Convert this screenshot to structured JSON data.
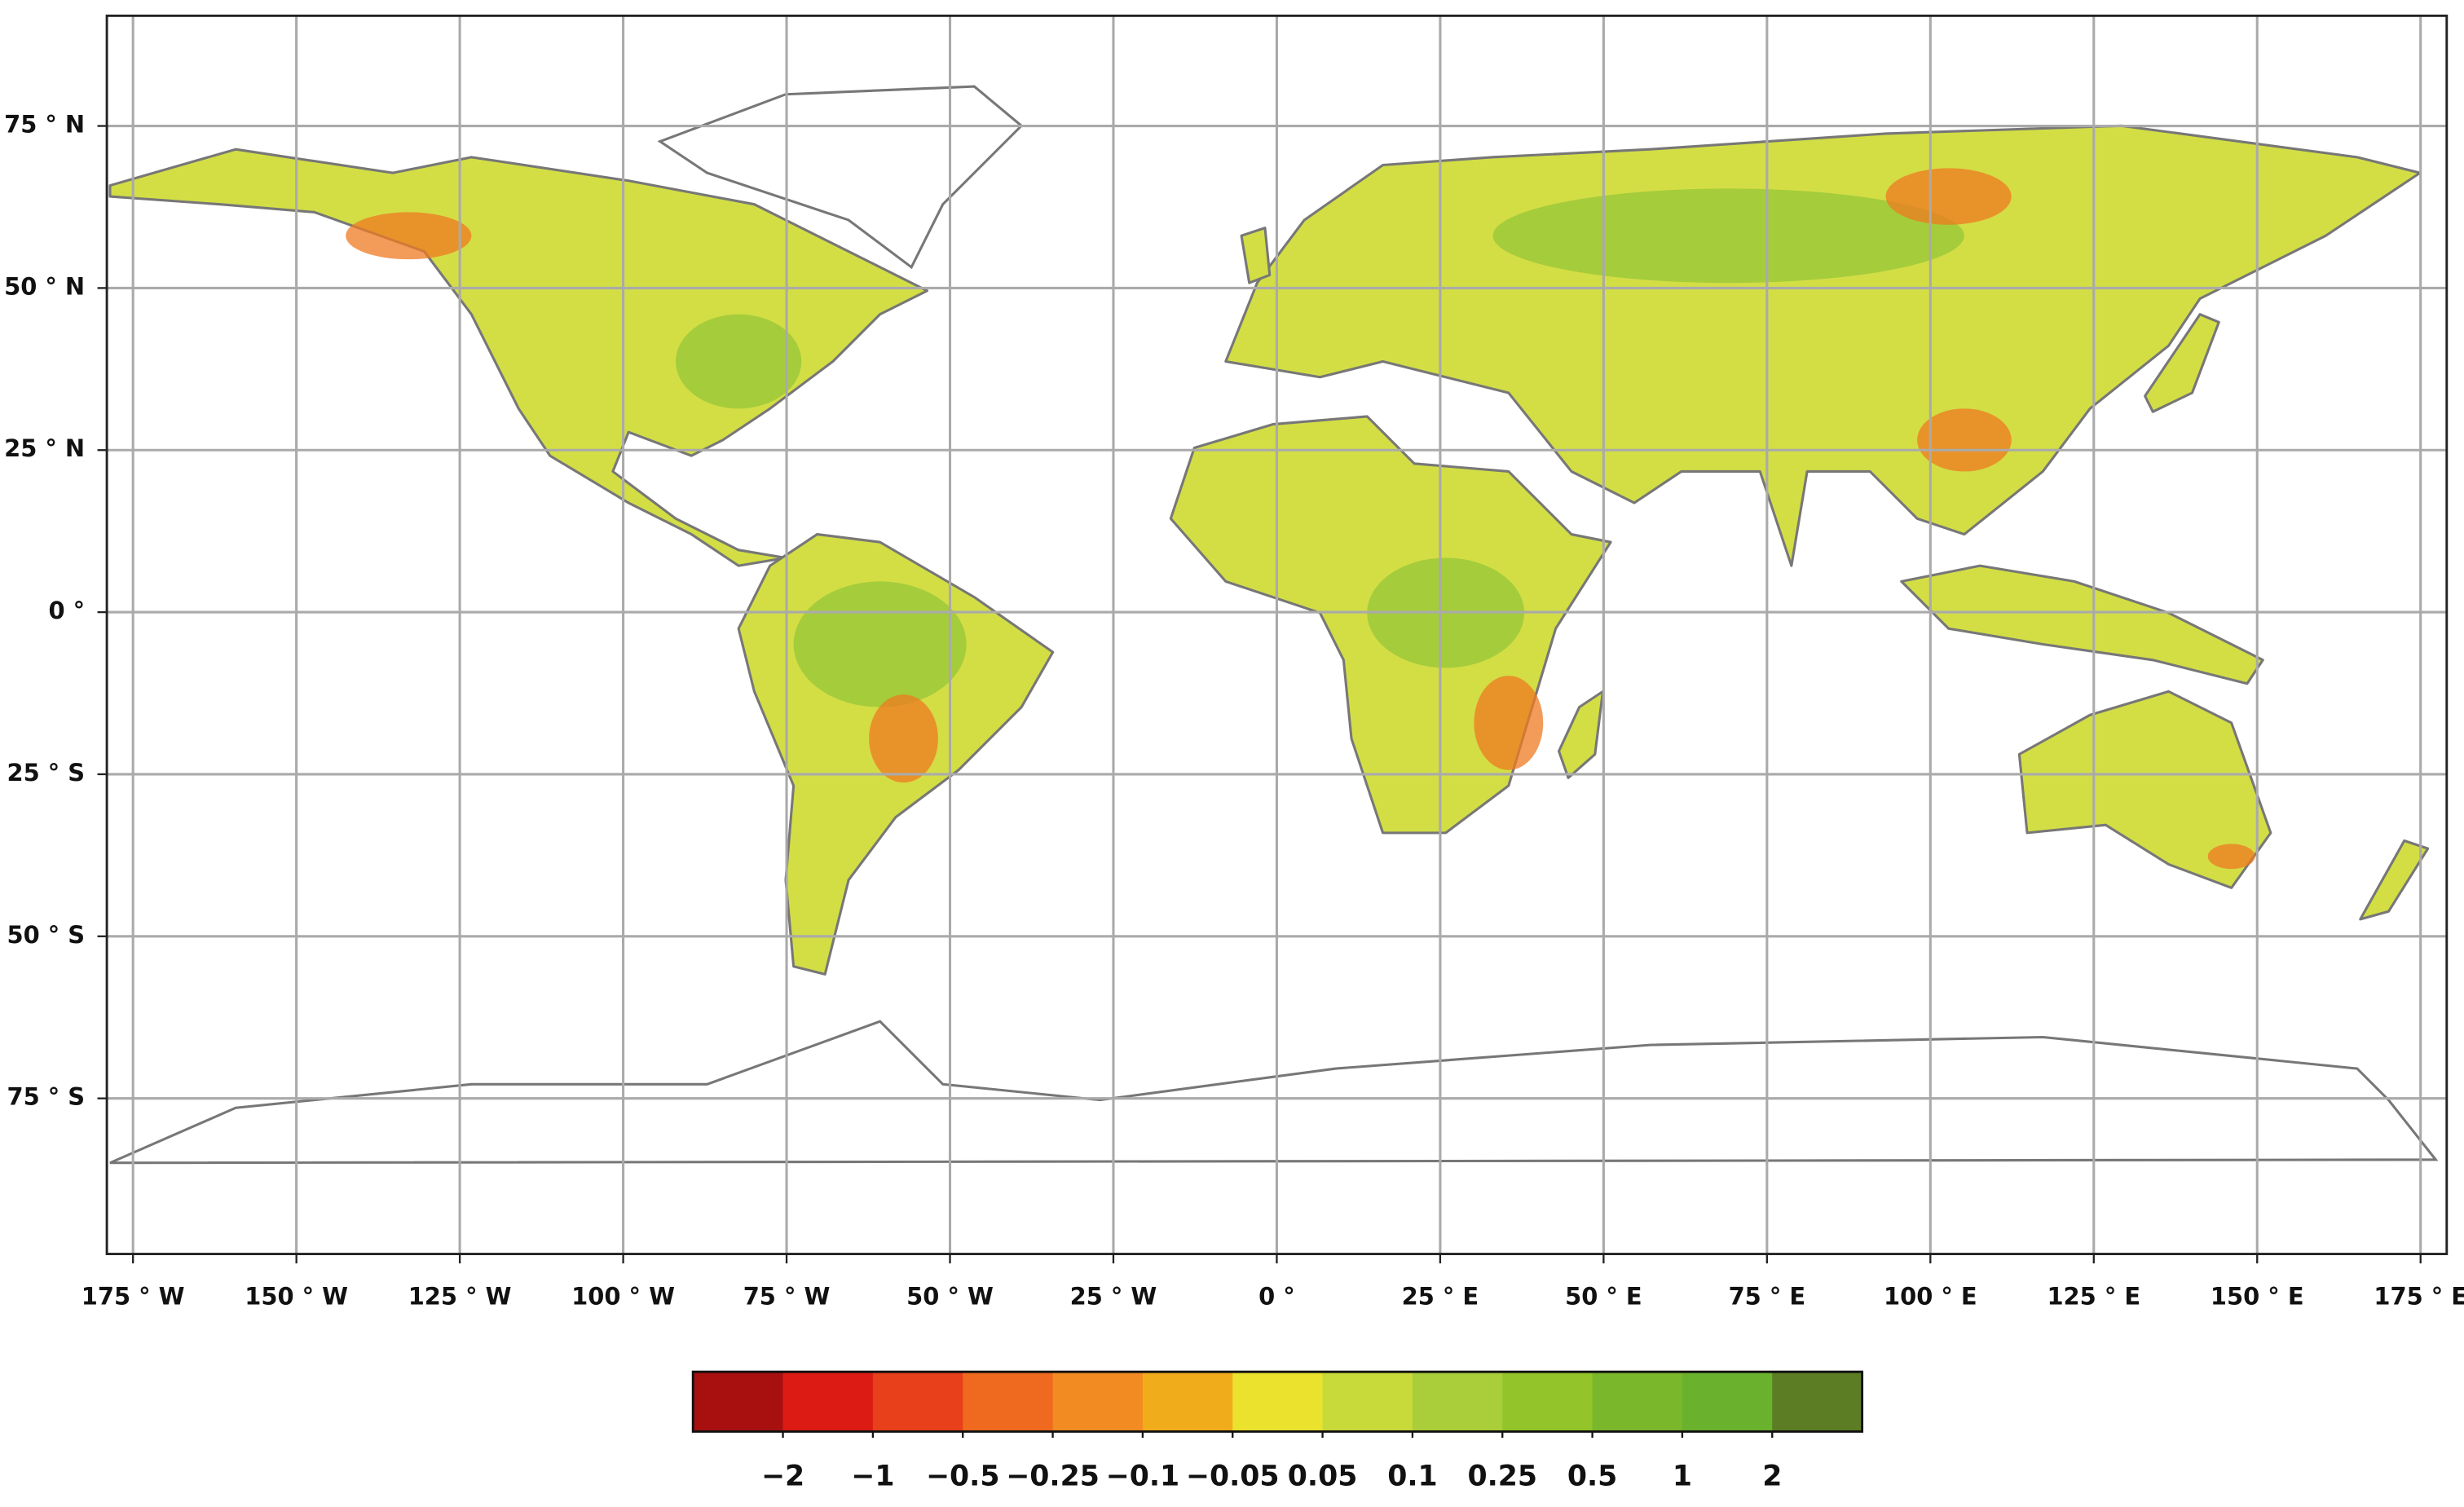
{
  "map": {
    "xlim": [
      -179,
      179
    ],
    "ylim": [
      -99,
      92
    ],
    "lon_ticks": [
      {
        "value": -175,
        "label": "175 ° W"
      },
      {
        "value": -150,
        "label": "150 ° W"
      },
      {
        "value": -125,
        "label": "125 ° W"
      },
      {
        "value": -100,
        "label": "100 ° W"
      },
      {
        "value": -75,
        "label": "75 ° W"
      },
      {
        "value": -50,
        "label": "50 ° W"
      },
      {
        "value": -25,
        "label": "25 ° W"
      },
      {
        "value": 0,
        "label": "0 °"
      },
      {
        "value": 25,
        "label": "25 ° E"
      },
      {
        "value": 50,
        "label": "50 ° E"
      },
      {
        "value": 75,
        "label": "75 ° E"
      },
      {
        "value": 100,
        "label": "100 ° E"
      },
      {
        "value": 125,
        "label": "125 ° E"
      },
      {
        "value": 150,
        "label": "150 ° E"
      },
      {
        "value": 175,
        "label": "175 ° E"
      }
    ],
    "lat_ticks": [
      {
        "value": 75,
        "label": "75 ° N"
      },
      {
        "value": 50,
        "label": "50 ° N"
      },
      {
        "value": 25,
        "label": "25 ° N"
      },
      {
        "value": 0,
        "label": "0 °"
      },
      {
        "value": -25,
        "label": "25 ° S"
      },
      {
        "value": -50,
        "label": "50 ° S"
      },
      {
        "value": -75,
        "label": "75 ° S"
      }
    ],
    "grid": true,
    "colorbar": {
      "colors": [
        "#a81010",
        "#dc1c14",
        "#e8401a",
        "#ef6a1e",
        "#f28c22",
        "#f1ac1c",
        "#ebe22e",
        "#c8d93a",
        "#aacd3a",
        "#93c52a",
        "#7ab72a",
        "#6ab22e",
        "#5c7d24"
      ],
      "bounds": [
        {
          "value": -2,
          "label": "−2"
        },
        {
          "value": -1,
          "label": "−1"
        },
        {
          "value": -0.5,
          "label": "−0.5"
        },
        {
          "value": -0.25,
          "label": "−0.25"
        },
        {
          "value": -0.1,
          "label": "−0.1"
        },
        {
          "value": -0.05,
          "label": "−0.05"
        },
        0.05,
        0.1,
        0.25,
        0.5,
        1,
        2
      ]
    }
  }
}
